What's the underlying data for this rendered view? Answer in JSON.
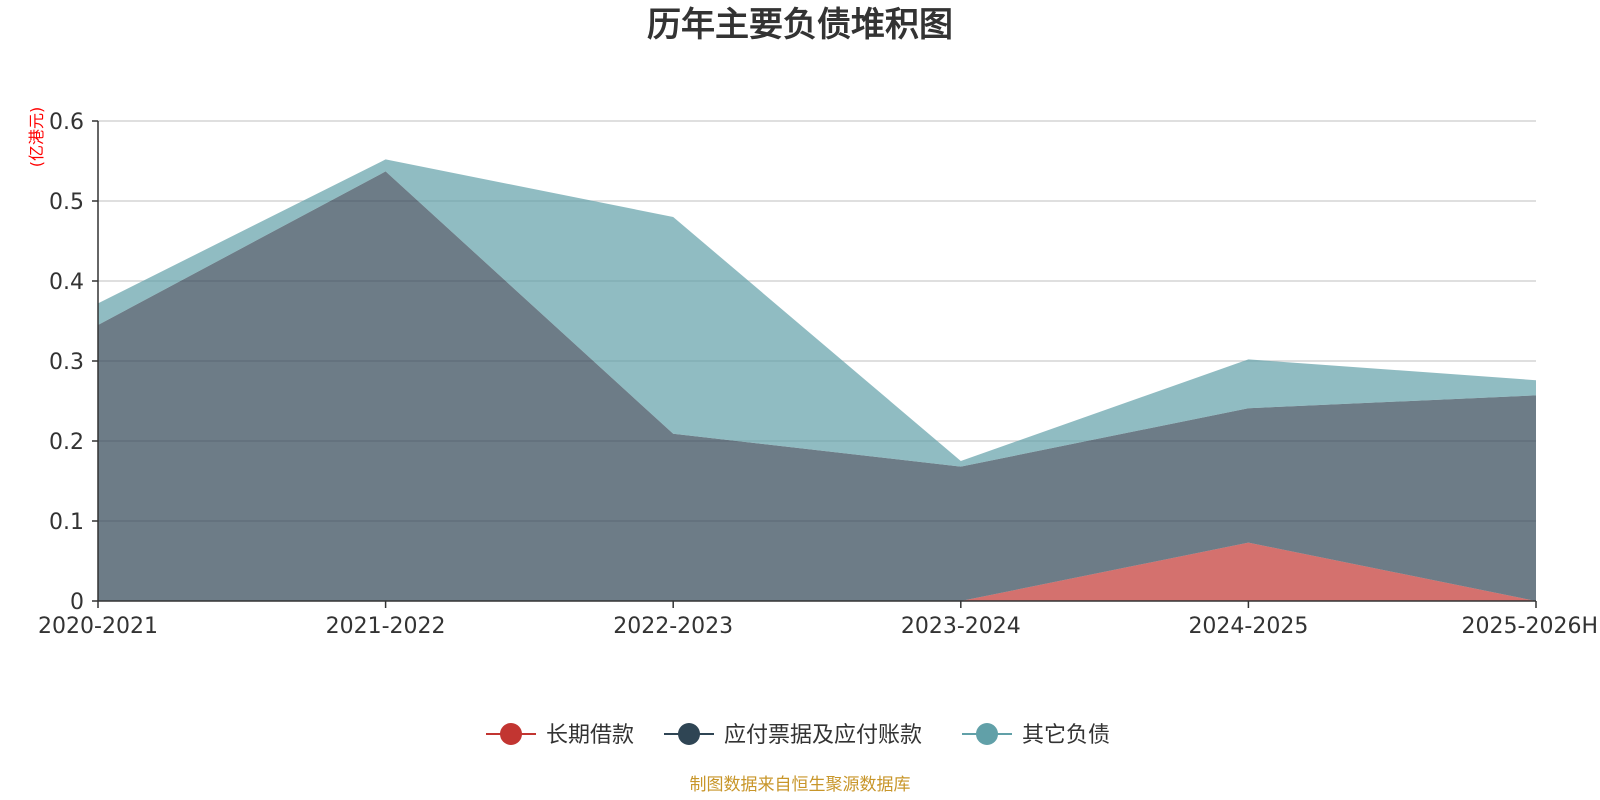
{
  "chart_data": {
    "type": "area",
    "stacked": true,
    "title": "历年主要负债堆积图",
    "unit_label": "(亿港元)",
    "x": [
      "2020-2021",
      "2021-2022",
      "2022-2023",
      "2023-2024",
      "2024-2025",
      "2025-2026H"
    ],
    "ylim": [
      0,
      0.6
    ],
    "yticks": [
      0,
      0.1,
      0.2,
      0.3,
      0.4,
      0.5,
      0.6
    ],
    "ytick_labels": [
      "0",
      "0.1",
      "0.2",
      "0.3",
      "0.4",
      "0.5",
      "0.6"
    ],
    "grid": true,
    "legend_position": "bottom",
    "series": [
      {
        "name": "长期借款",
        "color": "#c23531",
        "values": [
          0,
          0,
          0,
          0,
          0.073,
          0
        ]
      },
      {
        "name": "应付票据及应付账款",
        "color": "#2f4554",
        "values": [
          0.345,
          0.537,
          0.209,
          0.168,
          0.168,
          0.257
        ]
      },
      {
        "name": "其它负债",
        "color": "#61a0a8",
        "values": [
          0.027,
          0.015,
          0.271,
          0.007,
          0.061,
          0.019
        ]
      }
    ]
  },
  "source_note": "制图数据来自恒生聚源数据库",
  "colors": {
    "unit_label": "#ff0000",
    "source_note": "#c8962a",
    "grid": "#cccccc",
    "axis": "#333333"
  }
}
